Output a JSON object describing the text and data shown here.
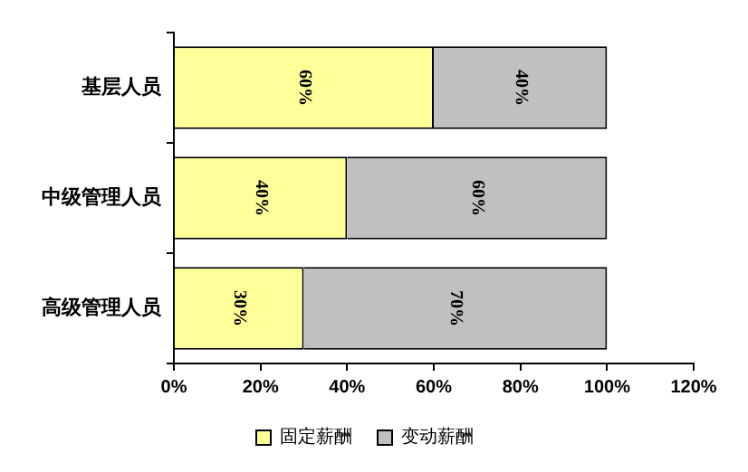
{
  "chart_data": {
    "type": "bar",
    "orientation": "horizontal",
    "stacked": true,
    "categories": [
      "基层人员",
      "中级管理人员",
      "高级管理人员"
    ],
    "series": [
      {
        "name": "固定薪酬",
        "color": "#ffff99",
        "values": [
          60,
          40,
          30
        ],
        "value_labels": [
          "60%",
          "40%",
          "30%"
        ]
      },
      {
        "name": "变动薪酬",
        "color": "#c0c0c0",
        "values": [
          40,
          60,
          70
        ],
        "value_labels": [
          "40%",
          "60%",
          "70%"
        ]
      }
    ],
    "xlim": [
      0,
      120
    ],
    "xticks": [
      {
        "value": 0,
        "label": "0%"
      },
      {
        "value": 20,
        "label": "20%"
      },
      {
        "value": 40,
        "label": "40%"
      },
      {
        "value": 60,
        "label": "60%"
      },
      {
        "value": 80,
        "label": "80%"
      },
      {
        "value": 100,
        "label": "100%"
      },
      {
        "value": 120,
        "label": "120%"
      }
    ],
    "grid": false,
    "legend": "bottom"
  }
}
